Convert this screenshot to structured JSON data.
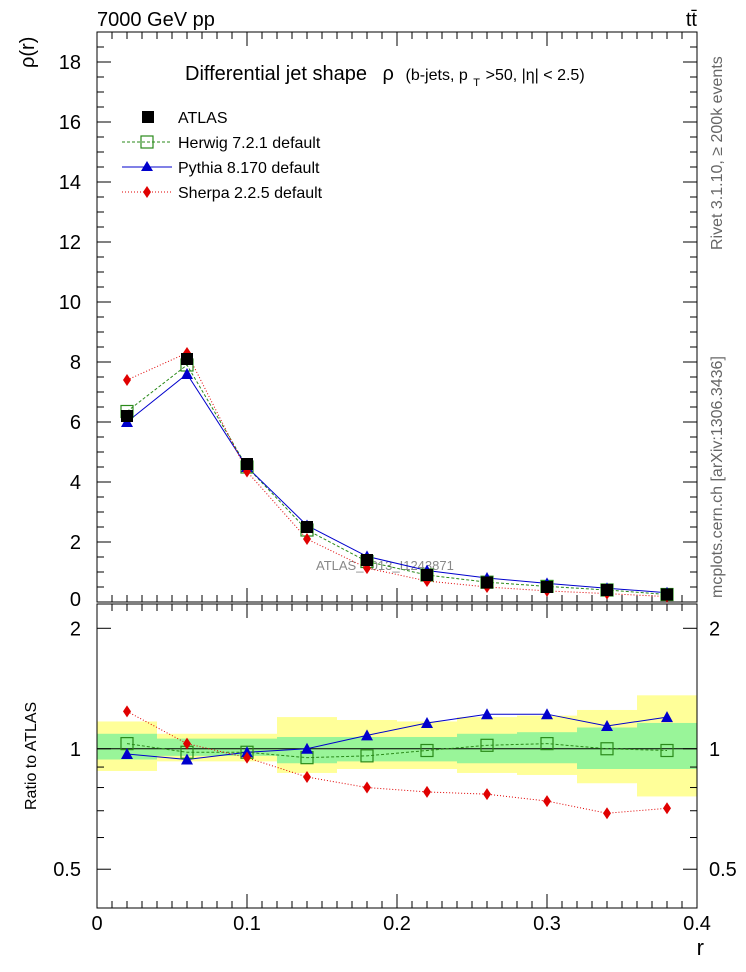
{
  "header": {
    "left": "7000 GeV pp",
    "right": "tt̄"
  },
  "side_labels": {
    "rivet": "Rivet 3.1.10, ≥ 200k events",
    "mcplots": "mcplots.cern.ch [arXiv:1306.3436]"
  },
  "watermark": "ATLAS_2013_I1243871",
  "title_parts": {
    "main": "Differential jet shape",
    "rho": "ρ",
    "open": "(b-jets, p",
    "sub": "T",
    "rest": ">50, |η| < 2.5)"
  },
  "axes": {
    "top_ylabel": "ρ(r)",
    "bottom_ylabel": "Ratio to ATLAS",
    "xlabel": "r"
  },
  "colors": {
    "atlas": "#000000",
    "herwig": "#2a8a1a",
    "pythia": "#0000cc",
    "sherpa": "#e00000",
    "band_inner": "#99f599",
    "band_outer": "#ffff99"
  },
  "chart_data": [
    {
      "type": "scatter",
      "panel": "main",
      "x": [
        0.02,
        0.06,
        0.1,
        0.14,
        0.18,
        0.22,
        0.26,
        0.3,
        0.34,
        0.38
      ],
      "xlim": [
        0,
        0.4
      ],
      "ylim": [
        0,
        19
      ],
      "yticks": [
        2,
        4,
        6,
        8,
        10,
        12,
        14,
        16,
        18
      ],
      "series": [
        {
          "name": "ATLAS",
          "values": [
            6.2,
            8.1,
            4.6,
            2.5,
            1.4,
            0.9,
            0.65,
            0.5,
            0.4,
            0.25
          ]
        },
        {
          "name": "Herwig 7.2.1 default",
          "values": [
            6.35,
            7.9,
            4.5,
            2.4,
            1.35,
            0.9,
            0.66,
            0.52,
            0.4,
            0.25
          ]
        },
        {
          "name": "Pythia 8.170 default",
          "values": [
            6.0,
            7.6,
            4.5,
            2.55,
            1.52,
            1.05,
            0.8,
            0.62,
            0.46,
            0.31
          ]
        },
        {
          "name": "Sherpa 2.2.5 default",
          "values": [
            7.4,
            8.3,
            4.35,
            2.1,
            1.13,
            0.7,
            0.5,
            0.37,
            0.28,
            0.18
          ]
        }
      ],
      "legend_position": "top-left"
    },
    {
      "type": "line",
      "panel": "ratio",
      "x": [
        0.02,
        0.06,
        0.1,
        0.14,
        0.18,
        0.22,
        0.26,
        0.3,
        0.34,
        0.38
      ],
      "xlim": [
        0,
        0.4
      ],
      "xticks": [
        0,
        0.1,
        0.2,
        0.3,
        0.4
      ],
      "ylim": [
        0.4,
        2.3
      ],
      "yticks": [
        0.5,
        1,
        2
      ],
      "reference_line": 1,
      "band_edges": [
        0.0,
        0.04,
        0.08,
        0.12,
        0.16,
        0.2,
        0.24,
        0.28,
        0.32,
        0.36,
        0.4
      ],
      "band_inner": [
        [
          0.94,
          1.09
        ],
        [
          0.96,
          1.06
        ],
        [
          0.96,
          1.06
        ],
        [
          0.92,
          1.07
        ],
        [
          0.93,
          1.07
        ],
        [
          0.93,
          1.07
        ],
        [
          0.92,
          1.09
        ],
        [
          0.92,
          1.1
        ],
        [
          0.89,
          1.13
        ],
        [
          0.89,
          1.16
        ]
      ],
      "band_outer": [
        [
          0.88,
          1.17
        ],
        [
          0.93,
          1.09
        ],
        [
          0.93,
          1.09
        ],
        [
          0.87,
          1.2
        ],
        [
          0.89,
          1.18
        ],
        [
          0.89,
          1.17
        ],
        [
          0.87,
          1.2
        ],
        [
          0.86,
          1.21
        ],
        [
          0.82,
          1.25
        ],
        [
          0.76,
          1.36
        ]
      ],
      "series": [
        {
          "name": "Herwig 7.2.1 default",
          "values": [
            1.03,
            0.98,
            0.98,
            0.95,
            0.96,
            0.99,
            1.02,
            1.03,
            1.0,
            0.99
          ]
        },
        {
          "name": "Pythia 8.170 default",
          "values": [
            0.97,
            0.94,
            0.98,
            1.0,
            1.08,
            1.16,
            1.22,
            1.22,
            1.14,
            1.2
          ]
        },
        {
          "name": "Sherpa 2.2.5 default",
          "values": [
            1.24,
            1.03,
            0.95,
            0.85,
            0.8,
            0.78,
            0.77,
            0.74,
            0.69,
            0.71
          ]
        }
      ]
    }
  ]
}
